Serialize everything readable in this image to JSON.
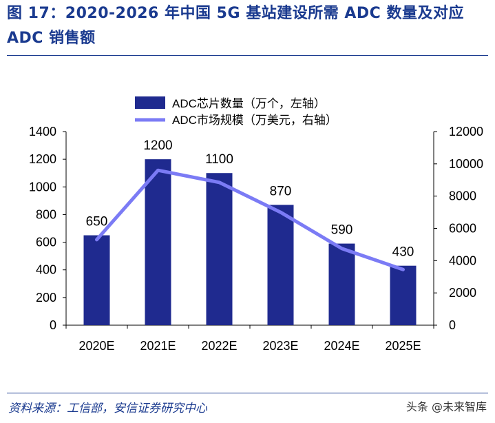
{
  "figure": {
    "title": "图 17：2020-2026 年中国 5G 基站建设所需 ADC 数量及对应 ADC 销售额",
    "source": "资料来源：工信部，安信证券研究中心",
    "watermark": "头条 @未来智库"
  },
  "chart_data": {
    "type": "bar",
    "categories": [
      "2020E",
      "2021E",
      "2022E",
      "2023E",
      "2024E",
      "2025E"
    ],
    "series": [
      {
        "name": "ADC芯片数量（万个，左轴）",
        "type": "bar",
        "axis": "left",
        "values": [
          650,
          1200,
          1100,
          870,
          590,
          430
        ],
        "data_labels": [
          "650",
          "1200",
          "1100",
          "870",
          "590",
          "430"
        ],
        "color": "#1f2a8f"
      },
      {
        "name": "ADC市场规模（万美元，右轴）",
        "type": "line",
        "axis": "right",
        "values": [
          5300,
          9600,
          8850,
          7000,
          4750,
          3450
        ],
        "color": "#7b7bf5"
      }
    ],
    "y_left": {
      "ylim": [
        0,
        1400
      ],
      "ticks": [
        "0",
        "200",
        "400",
        "600",
        "800",
        "1000",
        "1200",
        "1400"
      ]
    },
    "y_right": {
      "ylim": [
        0,
        12000
      ],
      "ticks": [
        "0",
        "2000",
        "4000",
        "6000",
        "8000",
        "10000",
        "12000"
      ]
    },
    "grid": false,
    "legend": "top-center"
  }
}
